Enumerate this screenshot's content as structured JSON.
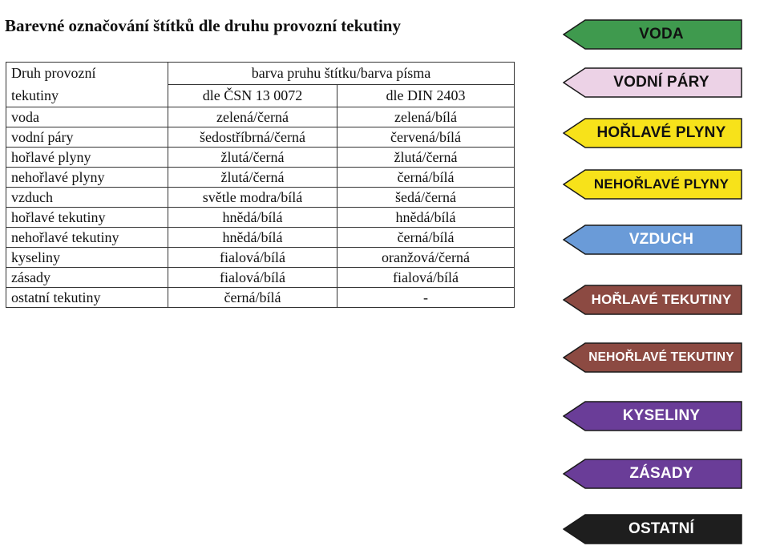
{
  "title": "Barevné označování štítků dle druhu provozní tekutiny",
  "table": {
    "header": {
      "col1_line1": "Druh provozní",
      "col1_line2": "tekutiny",
      "group": "barva pruhu štítku/barva písma",
      "col2": "dle ČSN 13 0072",
      "col3": "dle DIN 2403"
    },
    "rows": [
      {
        "fluid": "voda",
        "csn": "zelená/černá",
        "din": "zelená/bílá"
      },
      {
        "fluid": "vodní páry",
        "csn": "šedostříbrná/černá",
        "din": "červená/bílá"
      },
      {
        "fluid": "hořlavé plyny",
        "csn": "žlutá/černá",
        "din": "žlutá/černá"
      },
      {
        "fluid": "nehořlavé plyny",
        "csn": "žlutá/černá",
        "din": "černá/bílá"
      },
      {
        "fluid": "vzduch",
        "csn": "světle modra/bílá",
        "din": "šedá/černá"
      },
      {
        "fluid": "hořlavé tekutiny",
        "csn": "hnědá/bílá",
        "din": "hnědá/bílá"
      },
      {
        "fluid": "nehořlavé tekutiny",
        "csn": "hnědá/bílá",
        "din": "černá/bílá"
      },
      {
        "fluid": "kyseliny",
        "csn": "fialová/bílá",
        "din": "oranžová/černá"
      },
      {
        "fluid": "zásady",
        "csn": "fialová/bílá",
        "din": "fialová/bílá"
      },
      {
        "fluid": "ostatní tekutiny",
        "csn": "černá/bílá",
        "din": "-"
      }
    ]
  },
  "labels": [
    {
      "text": "VODA",
      "fill": "#3f9a4e",
      "color": "#111111"
    },
    {
      "text": "VODNÍ PÁRY",
      "fill": "#ecd2e6",
      "color": "#111111"
    },
    {
      "text": "HOŘLAVÉ PLYNY",
      "fill": "#f7e21a",
      "color": "#111111"
    },
    {
      "text": "NEHOŘLAVÉ PLYNY",
      "fill": "#f7e21a",
      "color": "#111111"
    },
    {
      "text": "VZDUCH",
      "fill": "#6a9bd8",
      "color": "#ffffff"
    },
    {
      "text": "HOŘLAVÉ TEKUTINY",
      "fill": "#8c4a42",
      "color": "#ffffff"
    },
    {
      "text": "NEHOŘLAVÉ TEKUTINY",
      "fill": "#8c4a42",
      "color": "#ffffff"
    },
    {
      "text": "KYSELINY",
      "fill": "#6a3d98",
      "color": "#ffffff"
    },
    {
      "text": "ZÁSADY",
      "fill": "#6a3d98",
      "color": "#ffffff"
    },
    {
      "text": "OSTATNÍ",
      "fill": "#1e1e1e",
      "color": "#ffffff"
    }
  ]
}
